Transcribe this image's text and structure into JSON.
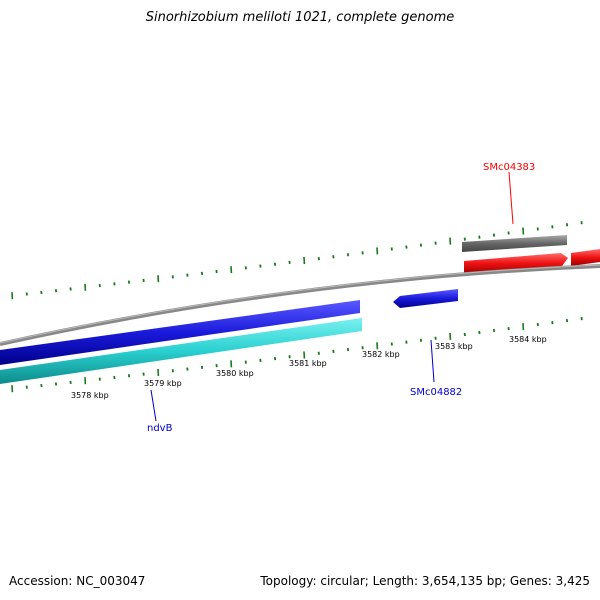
{
  "title": "Sinorhizobium meliloti 1021, complete genome",
  "footer": {
    "accession": "Accession: NC_003047",
    "summary": "Topology: circular; Length: 3,654,135 bp; Genes: 3,425"
  },
  "scale": {
    "ticks": [
      "3578 kbp",
      "3579 kbp",
      "3580 kbp",
      "3581 kbp",
      "3582 kbp",
      "3583 kbp",
      "3584 kbp"
    ]
  },
  "genes": [
    {
      "label": "SMc04383",
      "color": "#ff0000"
    },
    {
      "label": "SMc04882",
      "color": "#0000cc"
    },
    {
      "label": "ndvB",
      "color": "#0000cc"
    }
  ],
  "colors": {
    "backbone": "#888888",
    "gene_blue": "#1a1adc",
    "gene_cyan": "#2ad0d0",
    "gene_red": "#ee1111",
    "gene_gray": "#666666",
    "tick": "#1a7a1a"
  }
}
